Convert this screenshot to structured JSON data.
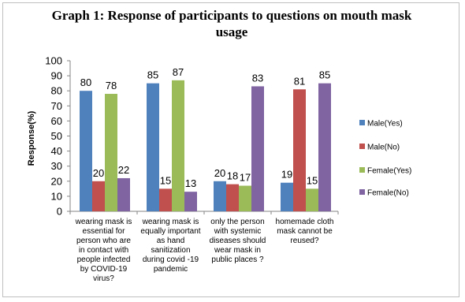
{
  "chart_data": {
    "type": "bar",
    "title_lines": [
      "Graph 1: Response of participants to questions on mouth mask",
      "usage"
    ],
    "xlabel": "",
    "ylabel": "Response(%)",
    "ylim": [
      0,
      100
    ],
    "yticks": [
      0,
      10,
      20,
      30,
      40,
      50,
      60,
      70,
      80,
      90,
      100
    ],
    "grid": false,
    "legend_position": "right",
    "categories": [
      [
        "wearing mask is",
        "essential for",
        "person who are",
        "in contact with",
        "people infected",
        "by COVID-19",
        "virus?"
      ],
      [
        "wearing mask is",
        "equally important",
        "as hand",
        "sanitization",
        "during covid -19",
        "pandemic"
      ],
      [
        "only the person",
        "with systemic",
        "diseases should",
        "wear mask in",
        "public places ?"
      ],
      [
        "homemade cloth",
        "mask cannot be",
        "reused?"
      ]
    ],
    "series": [
      {
        "name": "Male(Yes)",
        "color": "#4f81bd",
        "values": [
          80,
          85,
          20,
          19
        ]
      },
      {
        "name": "Male(No)",
        "color": "#c0504d",
        "values": [
          20,
          15,
          18,
          81
        ]
      },
      {
        "name": "Female(Yes)",
        "color": "#9bbb59",
        "values": [
          78,
          87,
          17,
          15
        ]
      },
      {
        "name": "Female(No)",
        "color": "#8064a2",
        "values": [
          22,
          13,
          83,
          85
        ]
      }
    ]
  }
}
